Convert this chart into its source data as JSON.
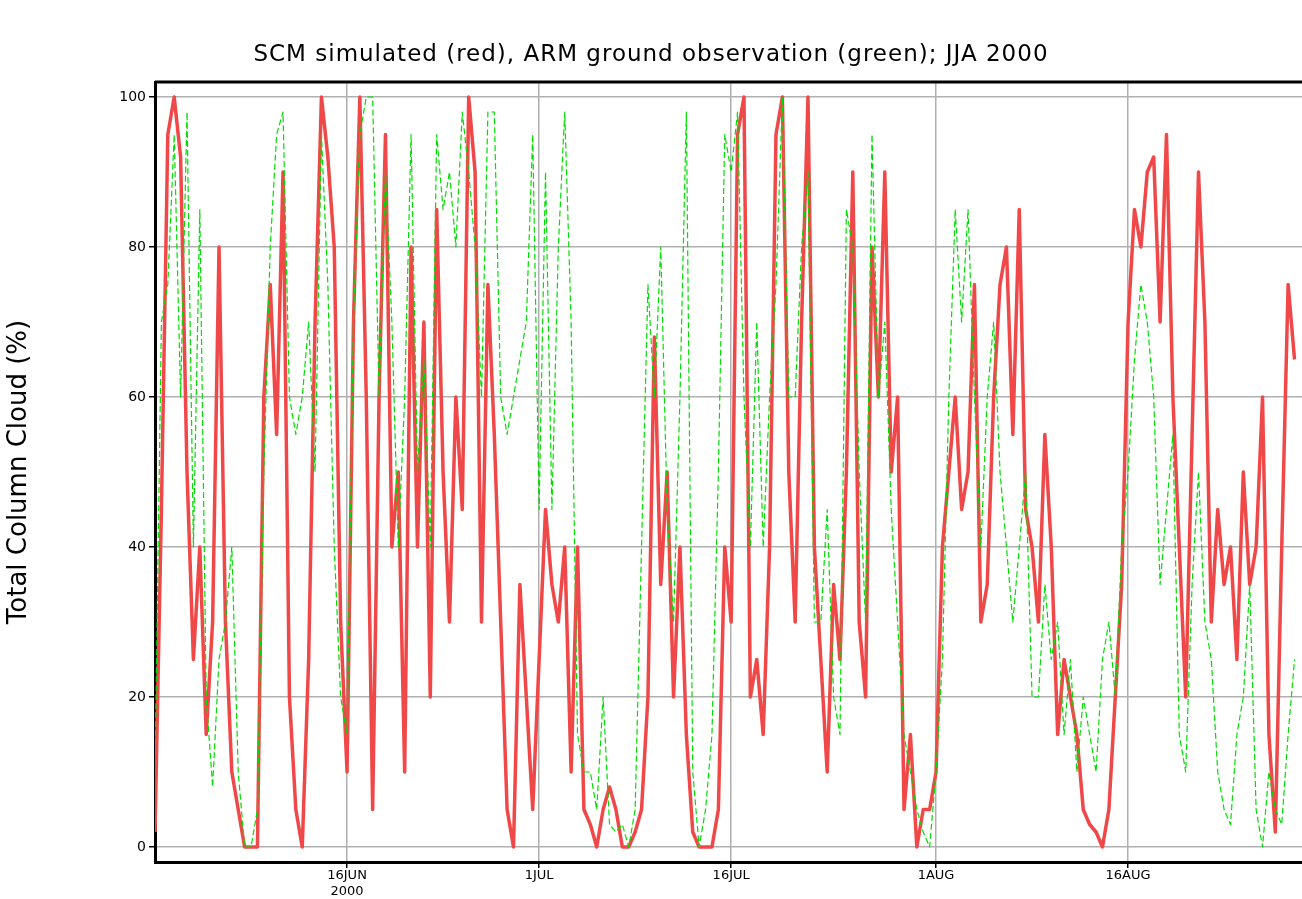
{
  "chart_data": {
    "type": "line",
    "title": "SCM simulated (red), ARM ground observation (green); JJA 2000",
    "ylabel": "Total Column Cloud (%)",
    "xlim": [
      "2000-06-01",
      "2000-08-29T14:00"
    ],
    "xticks": [
      {
        "value": "2000-06-16",
        "label": "16JUN\n2000"
      },
      {
        "value": "2000-07-01",
        "label": "1JUL"
      },
      {
        "value": "2000-07-16",
        "label": "16JUL"
      },
      {
        "value": "2000-08-01",
        "label": "1AUG"
      },
      {
        "value": "2000-08-16",
        "label": "16AUG"
      }
    ],
    "ylim": [
      -2,
      102
    ],
    "yticks": [
      0,
      20,
      40,
      60,
      80,
      100
    ],
    "grid": true,
    "legend": false,
    "marker": "none",
    "x": [
      "2000-06-01T00:00",
      "2000-06-01T12:00",
      "2000-06-02T00:00",
      "2000-06-02T12:00",
      "2000-06-03T00:00",
      "2000-06-03T12:00",
      "2000-06-04T00:00",
      "2000-06-04T12:00",
      "2000-06-05T00:00",
      "2000-06-05T12:00",
      "2000-06-06T00:00",
      "2000-06-06T12:00",
      "2000-06-07T00:00",
      "2000-06-07T12:00",
      "2000-06-08T00:00",
      "2000-06-08T12:00",
      "2000-06-09T00:00",
      "2000-06-09T12:00",
      "2000-06-10T00:00",
      "2000-06-10T12:00",
      "2000-06-11T00:00",
      "2000-06-11T12:00",
      "2000-06-12T00:00",
      "2000-06-12T12:00",
      "2000-06-13T00:00",
      "2000-06-13T12:00",
      "2000-06-14T00:00",
      "2000-06-14T12:00",
      "2000-06-15T00:00",
      "2000-06-15T12:00",
      "2000-06-16T00:00",
      "2000-06-16T12:00",
      "2000-06-17T00:00",
      "2000-06-17T12:00",
      "2000-06-18T00:00",
      "2000-06-18T12:00",
      "2000-06-19T00:00",
      "2000-06-19T12:00",
      "2000-06-20T00:00",
      "2000-06-20T12:00",
      "2000-06-21T00:00",
      "2000-06-21T12:00",
      "2000-06-22T00:00",
      "2000-06-22T12:00",
      "2000-06-23T00:00",
      "2000-06-23T12:00",
      "2000-06-24T00:00",
      "2000-06-24T12:00",
      "2000-06-25T00:00",
      "2000-06-25T12:00",
      "2000-06-26T00:00",
      "2000-06-26T12:00",
      "2000-06-27T00:00",
      "2000-06-27T12:00",
      "2000-06-28T00:00",
      "2000-06-28T12:00",
      "2000-06-29T00:00",
      "2000-06-29T12:00",
      "2000-06-30T00:00",
      "2000-06-30T12:00",
      "2000-07-01T00:00",
      "2000-07-01T12:00",
      "2000-07-02T00:00",
      "2000-07-02T12:00",
      "2000-07-03T00:00",
      "2000-07-03T12:00",
      "2000-07-04T00:00",
      "2000-07-04T12:00",
      "2000-07-05T00:00",
      "2000-07-05T12:00",
      "2000-07-06T00:00",
      "2000-07-06T12:00",
      "2000-07-07T00:00",
      "2000-07-07T12:00",
      "2000-07-08T00:00",
      "2000-07-08T12:00",
      "2000-07-09T00:00",
      "2000-07-09T12:00",
      "2000-07-10T00:00",
      "2000-07-10T12:00",
      "2000-07-11T00:00",
      "2000-07-11T12:00",
      "2000-07-12T00:00",
      "2000-07-12T12:00",
      "2000-07-13T00:00",
      "2000-07-13T12:00",
      "2000-07-14T00:00",
      "2000-07-14T12:00",
      "2000-07-15T00:00",
      "2000-07-15T12:00",
      "2000-07-16T00:00",
      "2000-07-16T12:00",
      "2000-07-17T00:00",
      "2000-07-17T12:00",
      "2000-07-18T00:00",
      "2000-07-18T12:00",
      "2000-07-19T00:00",
      "2000-07-19T12:00",
      "2000-07-20T00:00",
      "2000-07-20T12:00",
      "2000-07-21T00:00",
      "2000-07-21T12:00",
      "2000-07-22T00:00",
      "2000-07-22T12:00",
      "2000-07-23T00:00",
      "2000-07-23T12:00",
      "2000-07-24T00:00",
      "2000-07-24T12:00",
      "2000-07-25T00:00",
      "2000-07-25T12:00",
      "2000-07-26T00:00",
      "2000-07-26T12:00",
      "2000-07-27T00:00",
      "2000-07-27T12:00",
      "2000-07-28T00:00",
      "2000-07-28T12:00",
      "2000-07-29T00:00",
      "2000-07-29T12:00",
      "2000-07-30T00:00",
      "2000-07-30T12:00",
      "2000-07-31T00:00",
      "2000-07-31T12:00",
      "2000-08-01T00:00",
      "2000-08-01T12:00",
      "2000-08-02T00:00",
      "2000-08-02T12:00",
      "2000-08-03T00:00",
      "2000-08-03T12:00",
      "2000-08-04T00:00",
      "2000-08-04T12:00",
      "2000-08-05T00:00",
      "2000-08-05T12:00",
      "2000-08-06T00:00",
      "2000-08-06T12:00",
      "2000-08-07T00:00",
      "2000-08-07T12:00",
      "2000-08-08T00:00",
      "2000-08-08T12:00",
      "2000-08-09T00:00",
      "2000-08-09T12:00",
      "2000-08-10T00:00",
      "2000-08-10T12:00",
      "2000-08-11T00:00",
      "2000-08-11T12:00",
      "2000-08-12T00:00",
      "2000-08-12T12:00",
      "2000-08-13T00:00",
      "2000-08-13T12:00",
      "2000-08-14T00:00",
      "2000-08-14T12:00",
      "2000-08-15T00:00",
      "2000-08-15T12:00",
      "2000-08-16T00:00",
      "2000-08-16T12:00",
      "2000-08-17T00:00",
      "2000-08-17T12:00",
      "2000-08-18T00:00",
      "2000-08-18T12:00",
      "2000-08-19T00:00",
      "2000-08-19T12:00",
      "2000-08-20T00:00",
      "2000-08-20T12:00",
      "2000-08-21T00:00",
      "2000-08-21T12:00",
      "2000-08-22T00:00",
      "2000-08-22T12:00",
      "2000-08-23T00:00",
      "2000-08-23T12:00",
      "2000-08-24T00:00",
      "2000-08-24T12:00",
      "2000-08-25T00:00",
      "2000-08-25T12:00",
      "2000-08-26T00:00",
      "2000-08-26T12:00",
      "2000-08-27T00:00",
      "2000-08-27T12:00",
      "2000-08-28T00:00",
      "2000-08-28T12:00",
      "2000-08-29T00:00"
    ],
    "series": [
      {
        "color": "#00dd00",
        "line_style": "dashed",
        "values": [
          10,
          70,
          75,
          95,
          60,
          98,
          40,
          85,
          20,
          8,
          25,
          30,
          40,
          10,
          0,
          0,
          5,
          50,
          80,
          95,
          98,
          60,
          55,
          60,
          70,
          50,
          95,
          75,
          40,
          20,
          15,
          70,
          95,
          100,
          100,
          60,
          90,
          70,
          40,
          60,
          95,
          50,
          65,
          40,
          95,
          85,
          90,
          80,
          98,
          90,
          80,
          60,
          98,
          98,
          60,
          55,
          60,
          65,
          70,
          95,
          45,
          90,
          45,
          80,
          98,
          70,
          15,
          10,
          10,
          5,
          20,
          3,
          2,
          3,
          0,
          5,
          40,
          75,
          60,
          80,
          45,
          30,
          60,
          98,
          10,
          0,
          5,
          15,
          50,
          95,
          90,
          98,
          60,
          40,
          70,
          40,
          60,
          75,
          100,
          60,
          60,
          80,
          90,
          30,
          30,
          45,
          20,
          15,
          85,
          80,
          50,
          30,
          95,
          60,
          70,
          45,
          30,
          15,
          10,
          5,
          2,
          0,
          10,
          25,
          60,
          85,
          70,
          85,
          60,
          40,
          60,
          70,
          50,
          40,
          30,
          40,
          50,
          20,
          20,
          35,
          25,
          30,
          15,
          25,
          10,
          20,
          15,
          10,
          25,
          30,
          20,
          40,
          50,
          65,
          75,
          70,
          60,
          35,
          45,
          55,
          15,
          10,
          35,
          50,
          30,
          25,
          10,
          5,
          3,
          15,
          20,
          35,
          5,
          0,
          10,
          5,
          3,
          15,
          25
        ]
      },
      {
        "color": "#f04848",
        "line_style": "solid",
        "values": [
          2,
          45,
          95,
          100,
          92,
          50,
          25,
          40,
          15,
          30,
          80,
          30,
          10,
          5,
          0,
          0,
          0,
          60,
          75,
          55,
          90,
          20,
          5,
          0,
          25,
          70,
          100,
          92,
          80,
          30,
          10,
          70,
          100,
          60,
          5,
          60,
          95,
          40,
          50,
          10,
          80,
          40,
          70,
          20,
          85,
          50,
          30,
          60,
          45,
          100,
          90,
          30,
          75,
          55,
          30,
          5,
          0,
          35,
          20,
          5,
          25,
          45,
          35,
          30,
          40,
          10,
          40,
          5,
          3,
          0,
          5,
          8,
          5,
          0,
          0,
          2,
          5,
          20,
          68,
          35,
          50,
          20,
          40,
          15,
          2,
          0,
          0,
          0,
          5,
          40,
          30,
          95,
          100,
          20,
          25,
          15,
          40,
          95,
          100,
          50,
          30,
          70,
          100,
          40,
          25,
          10,
          35,
          25,
          50,
          90,
          30,
          20,
          80,
          60,
          90,
          50,
          60,
          5,
          15,
          0,
          5,
          5,
          10,
          40,
          50,
          60,
          45,
          50,
          75,
          30,
          35,
          60,
          75,
          80,
          55,
          85,
          45,
          40,
          30,
          55,
          40,
          15,
          25,
          20,
          15,
          5,
          3,
          2,
          0,
          5,
          20,
          35,
          70,
          85,
          80,
          90,
          92,
          70,
          95,
          60,
          40,
          20,
          55,
          90,
          70,
          30,
          45,
          35,
          40,
          25,
          50,
          35,
          40,
          60,
          15,
          2,
          40,
          75,
          65
        ]
      }
    ]
  }
}
